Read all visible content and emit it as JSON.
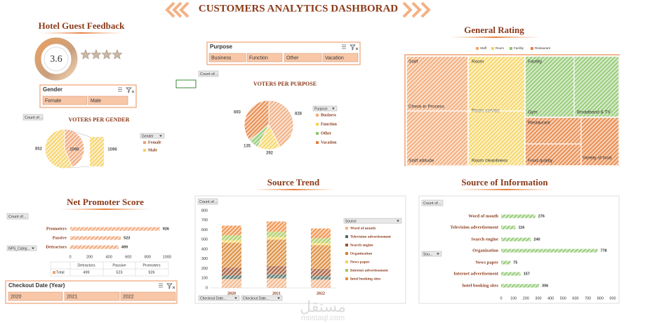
{
  "title": "CUSTOMERS ANALYTICS DASHBORAD",
  "feedback": {
    "title": "Hotel Guest Feedback",
    "rating": 3.6
  },
  "gender_slicer": {
    "title": "Gender",
    "items": [
      "Female",
      "Male"
    ]
  },
  "purpose_slicer": {
    "title": "Purpose",
    "items": [
      "Business",
      "Function",
      "Other",
      "Vacation"
    ]
  },
  "year_slicer": {
    "title": "Checkout Date (Year)",
    "items": [
      "2020",
      "2021",
      "2022"
    ]
  },
  "buttons": {
    "count": "Count of...",
    "nps_field": "NPS_Categ...",
    "source_field": "Sou...",
    "checkout_field": "Checkout Date..."
  },
  "watermark": {
    "arabic": "مستقل",
    "latin": "mostaql.com"
  },
  "chart_data": [
    {
      "type": "pie",
      "title": "VOTERS PER GENDER",
      "legend_title": "Gender",
      "categories": [
        "Female",
        "Male"
      ],
      "values": [
        852,
        1096
      ],
      "colors": [
        "#f0a070",
        "#f5d060"
      ]
    },
    {
      "type": "pie",
      "title": "VOTERS PER PURPOSE",
      "legend_title": "Purpose",
      "categories": [
        "Business",
        "Function",
        "Other",
        "Vacation"
      ],
      "values": [
        828,
        292,
        135,
        693
      ],
      "colors": [
        "#f0a878",
        "#f5d35a",
        "#8cc66a",
        "#e8803c"
      ]
    },
    {
      "type": "treemap",
      "title": "General Rating",
      "categories": [
        "Staff",
        "Room",
        "Facility",
        "Restaurant"
      ],
      "colors": [
        "#f3a56f",
        "#f5d35a",
        "#8cc66a",
        "#e8803c"
      ],
      "leaves": [
        [
          "Check-in Process",
          "Staff attitude"
        ],
        [
          "Room service",
          "Room cleanliness"
        ],
        [
          "Gym",
          "Broadband & TV"
        ],
        [
          "Food quality",
          "Variety of food"
        ]
      ]
    },
    {
      "type": "hbar",
      "title": "Net Promoter Score",
      "categories": [
        "Detractors",
        "Passive",
        "Promoters"
      ],
      "values": [
        499,
        523,
        926
      ],
      "color": "#f0a070",
      "xlim": [
        0,
        1000
      ],
      "xticks": [
        0,
        200,
        400,
        600,
        800,
        1000
      ],
      "total_label": "Total"
    },
    {
      "type": "stacked_bar",
      "title": "Source Trend",
      "legend_title": "Source",
      "categories": [
        "2020",
        "2021",
        "2022"
      ],
      "ylim": [
        0,
        800
      ],
      "yticks": [
        0,
        100,
        200,
        300,
        400,
        500,
        600,
        700,
        800
      ],
      "series": [
        {
          "name": "Word of mouth",
          "color": "#f4b183",
          "values": [
            92,
            98,
            86
          ]
        },
        {
          "name": "Television advertisement",
          "color": "#4d6b5c",
          "values": [
            38,
            42,
            36
          ]
        },
        {
          "name": "Search engine",
          "color": "#a0522d",
          "values": [
            80,
            85,
            75
          ]
        },
        {
          "name": "Organization",
          "color": "#d9822b",
          "values": [
            258,
            275,
            245
          ]
        },
        {
          "name": "News paper",
          "color": "#f5d35a",
          "values": [
            25,
            27,
            23
          ]
        },
        {
          "name": "Internet advertisement",
          "color": "#a9c95a",
          "values": [
            52,
            56,
            49
          ]
        },
        {
          "name": "hotel booking sites",
          "color": "#f08a3c",
          "values": [
            100,
            105,
            101
          ]
        }
      ]
    },
    {
      "type": "hbar",
      "title": "Source of Information",
      "categories": [
        "Word of mouth",
        "Television advertisement",
        "Search engine",
        "Organization",
        "News paper",
        "Internet advertisement",
        "hotel booking sites"
      ],
      "values": [
        276,
        116,
        240,
        778,
        75,
        157,
        306
      ],
      "color": "#8cc66a",
      "xlim": [
        0,
        900
      ],
      "xticks": [
        0,
        100,
        200,
        300,
        400,
        500,
        600,
        700,
        800,
        900
      ]
    }
  ]
}
